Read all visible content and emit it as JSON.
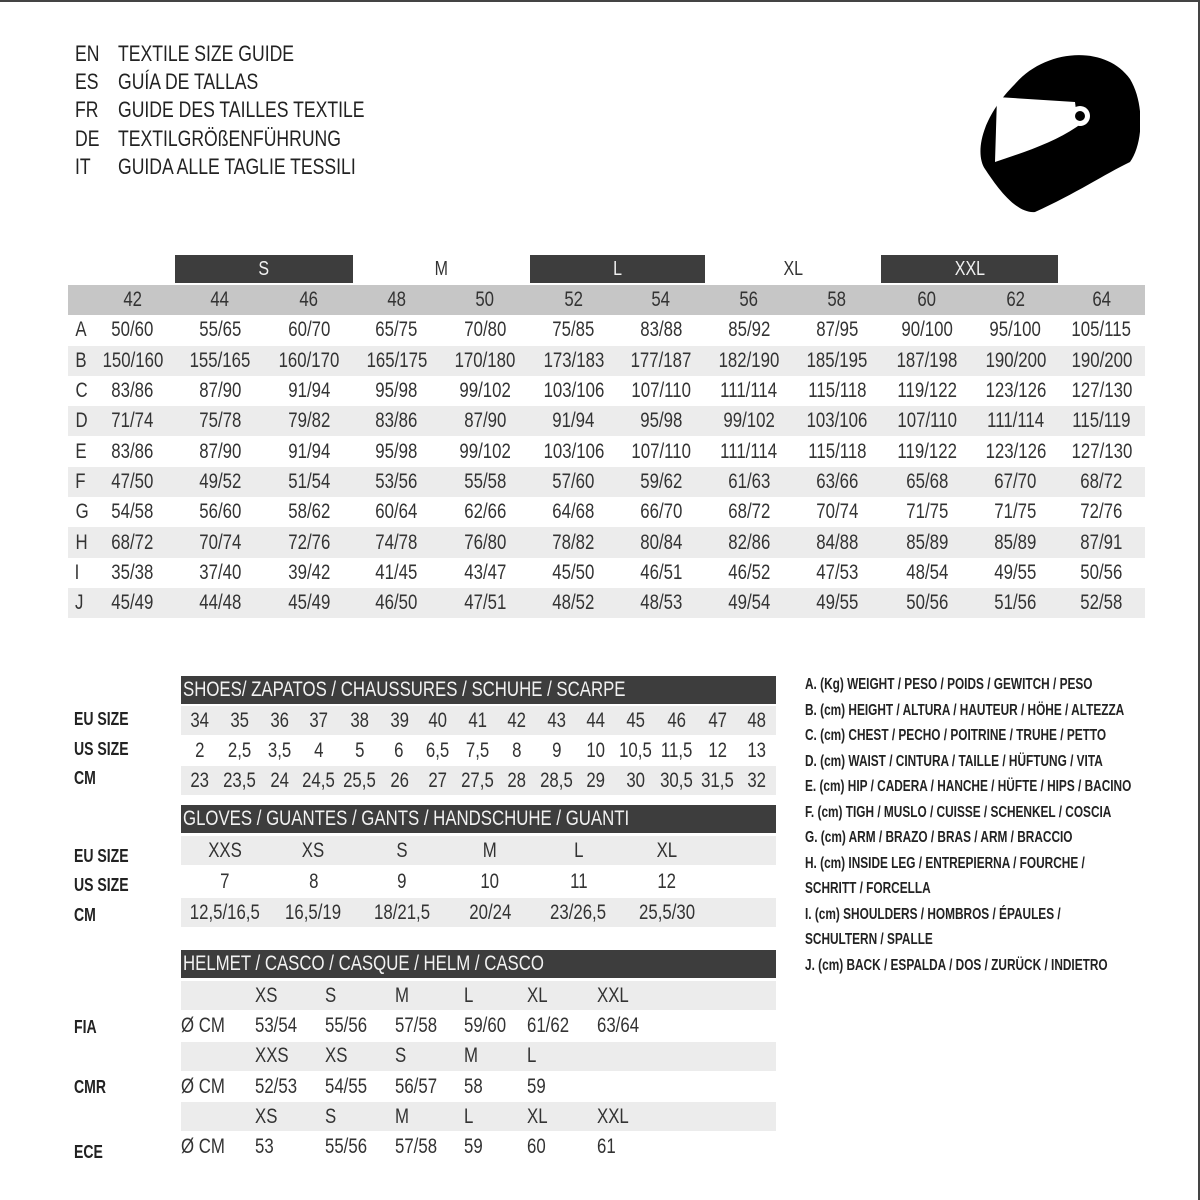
{
  "header": {
    "lines": [
      {
        "code": "EN",
        "text": "TEXTILE SIZE GUIDE"
      },
      {
        "code": "ES",
        "text": "GUÍA DE TALLAS"
      },
      {
        "code": "FR",
        "text": "GUIDE DES TAILLES TEXTILE"
      },
      {
        "code": "DE",
        "text": "TEXTILGRÖßENFÜHRUNG"
      },
      {
        "code": "IT",
        "text": "GUIDA ALLE TAGLIE TESSILI"
      }
    ],
    "icon": "helmet-icon"
  },
  "textile": {
    "bands": [
      {
        "label": "S",
        "dark": true
      },
      {
        "label": "M",
        "dark": false
      },
      {
        "label": "L",
        "dark": true
      },
      {
        "label": "XL",
        "dark": false
      },
      {
        "label": "XXL",
        "dark": true
      }
    ],
    "sizes": [
      "42",
      "44",
      "46",
      "48",
      "50",
      "52",
      "54",
      "56",
      "58",
      "60",
      "62",
      "64"
    ],
    "rows": [
      {
        "letter": "A",
        "values": [
          "50/60",
          "55/65",
          "60/70",
          "65/75",
          "70/80",
          "75/85",
          "83/88",
          "85/92",
          "87/95",
          "90/100",
          "95/100",
          "105/115"
        ]
      },
      {
        "letter": "B",
        "values": [
          "150/160",
          "155/165",
          "160/170",
          "165/175",
          "170/180",
          "173/183",
          "177/187",
          "182/190",
          "185/195",
          "187/198",
          "190/200",
          "190/200"
        ]
      },
      {
        "letter": "C",
        "values": [
          "83/86",
          "87/90",
          "91/94",
          "95/98",
          "99/102",
          "103/106",
          "107/110",
          "111/114",
          "115/118",
          "119/122",
          "123/126",
          "127/130"
        ]
      },
      {
        "letter": "D",
        "values": [
          "71/74",
          "75/78",
          "79/82",
          "83/86",
          "87/90",
          "91/94",
          "95/98",
          "99/102",
          "103/106",
          "107/110",
          "111/114",
          "115/119"
        ]
      },
      {
        "letter": "E",
        "values": [
          "83/86",
          "87/90",
          "91/94",
          "95/98",
          "99/102",
          "103/106",
          "107/110",
          "111/114",
          "115/118",
          "119/122",
          "123/126",
          "127/130"
        ]
      },
      {
        "letter": "F",
        "values": [
          "47/50",
          "49/52",
          "51/54",
          "53/56",
          "55/58",
          "57/60",
          "59/62",
          "61/63",
          "63/66",
          "65/68",
          "67/70",
          "68/72"
        ]
      },
      {
        "letter": "G",
        "values": [
          "54/58",
          "56/60",
          "58/62",
          "60/64",
          "62/66",
          "64/68",
          "66/70",
          "68/72",
          "70/74",
          "71/75",
          "71/75",
          "72/76"
        ]
      },
      {
        "letter": "H",
        "values": [
          "68/72",
          "70/74",
          "72/76",
          "74/78",
          "76/80",
          "78/82",
          "80/84",
          "82/86",
          "84/88",
          "85/89",
          "85/89",
          "87/91"
        ]
      },
      {
        "letter": "I",
        "values": [
          "35/38",
          "37/40",
          "39/42",
          "41/45",
          "43/47",
          "45/50",
          "46/51",
          "46/52",
          "47/53",
          "48/54",
          "49/55",
          "50/56"
        ]
      },
      {
        "letter": "J",
        "values": [
          "45/49",
          "44/48",
          "45/49",
          "46/50",
          "47/51",
          "48/52",
          "48/53",
          "49/54",
          "49/55",
          "50/56",
          "51/56",
          "52/58"
        ]
      }
    ]
  },
  "shoes": {
    "title": "SHOES/ ZAPATOS / CHAUSSURES / SCHUHE / SCARPE",
    "row_labels": [
      "EU SIZE",
      "US SIZE",
      "CM"
    ],
    "rows": [
      [
        "34",
        "35",
        "36",
        "37",
        "38",
        "39",
        "40",
        "41",
        "42",
        "43",
        "44",
        "45",
        "46",
        "47",
        "48"
      ],
      [
        "2",
        "2,5",
        "3,5",
        "4",
        "5",
        "6",
        "6,5",
        "7,5",
        "8",
        "9",
        "10",
        "10,5",
        "11,5",
        "12",
        "13"
      ],
      [
        "23",
        "23,5",
        "24",
        "24,5",
        "25,5",
        "26",
        "27",
        "27,5",
        "28",
        "28,5",
        "29",
        "30",
        "30,5",
        "31,5",
        "32"
      ]
    ]
  },
  "gloves": {
    "title": "GLOVES / GUANTES / GANTS / HANDSCHUHE / GUANTI",
    "row_labels": [
      "EU SIZE",
      "US SIZE",
      "CM"
    ],
    "rows": [
      [
        "XXS",
        "XS",
        "S",
        "M",
        "L",
        "XL"
      ],
      [
        "7",
        "8",
        "9",
        "10",
        "11",
        "12"
      ],
      [
        "12,5/16,5",
        "16,5/19",
        "18/21,5",
        "20/24",
        "23/26,5",
        "25,5/30"
      ]
    ]
  },
  "helmet": {
    "title": "HELMET / CASCO / CASQUE / HELM / CASCO",
    "unit": "Ø CM",
    "standards": [
      {
        "name": "FIA",
        "sizes": [
          "XS",
          "S",
          "M",
          "L",
          "XL",
          "XXL"
        ],
        "cm": [
          "53/54",
          "55/56",
          "57/58",
          "59/60",
          "61/62",
          "63/64"
        ]
      },
      {
        "name": "CMR",
        "sizes": [
          "XXS",
          "XS",
          "S",
          "M",
          "L"
        ],
        "cm": [
          "52/53",
          "54/55",
          "56/57",
          "58",
          "59"
        ]
      },
      {
        "name": "ECE",
        "sizes": [
          "XS",
          "S",
          "M",
          "L",
          "XL",
          "XXL"
        ],
        "cm": [
          "53",
          "55/56",
          "57/58",
          "59",
          "60",
          "61"
        ]
      }
    ]
  },
  "legend": [
    "A. (Kg) WEIGHT / PESO / POIDS / GEWITCH / PESO",
    "B. (cm) HEIGHT / ALTURA / HAUTEUR / HÖHE / ALTEZZA",
    "C. (cm) CHEST / PECHO / POITRINE / TRUHE / PETTO",
    "D. (cm) WAIST / CINTURA / TAILLE / HÜFTUNG / VITA",
    "E. (cm) HIP / CADERA / HANCHE / HÜFTE / HIPS /  BACINO",
    "F.  (cm) TIGH / MUSLO / CUISSE / SCHENKEL / COSCIA",
    "G. (cm) ARM  / BRAZO / BRAS / ARM / BRACCIO",
    "H. (cm) INSIDE LEG / ENTREPIERNA / FOURCHE /",
    "SCHRITT / FORCELLA",
    "I.  (cm) SHOULDERS / HOMBROS / ÉPAULES /",
    "SCHULTERN / SPALLE",
    "J. (cm) BACK / ESPALDA / DOS / ZURÜCK / INDIETRO"
  ]
}
